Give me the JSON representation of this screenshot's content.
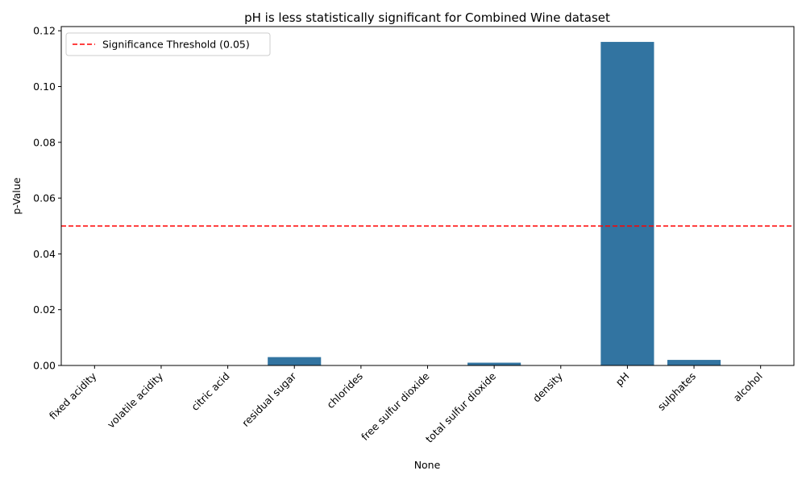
{
  "chart_data": {
    "type": "bar",
    "title": "pH is less statistically significant for Combined Wine dataset",
    "xlabel": "None",
    "ylabel": "p-Value",
    "categories": [
      "fixed acidity",
      "volatile acidity",
      "citric acid",
      "residual sugar",
      "chlorides",
      "free sulfur dioxide",
      "total sulfur dioxide",
      "density",
      "pH",
      "sulphates",
      "alcohol"
    ],
    "values": [
      0.0,
      0.0,
      0.0,
      0.003,
      0.0,
      0.0,
      0.001,
      0.0,
      0.116,
      0.002,
      0.0
    ],
    "ylim": [
      0,
      0.1215
    ],
    "yticks": [
      "0.00",
      "0.02",
      "0.04",
      "0.06",
      "0.08",
      "0.10",
      "0.12"
    ],
    "ytick_values": [
      0,
      0.02,
      0.04,
      0.06,
      0.08,
      0.1,
      0.12
    ],
    "bar_color": "#3274a1",
    "threshold": {
      "value": 0.05,
      "label": "Significance Threshold (0.05)",
      "color": "#ff0000",
      "style": "dashed"
    },
    "legend_position": "top-left",
    "grid": false
  }
}
